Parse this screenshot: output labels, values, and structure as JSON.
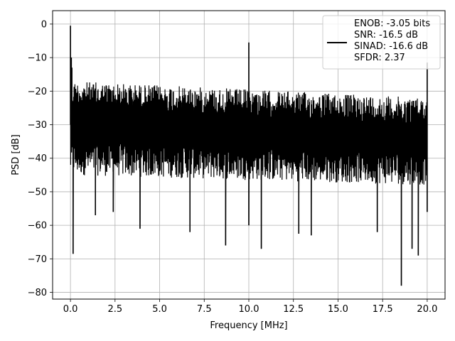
{
  "chart_data": {
    "type": "line",
    "xlabel": "Frequency [MHz]",
    "ylabel": "PSD [dB]",
    "xlim": [
      -1.0,
      21.0
    ],
    "ylim": [
      -82.0,
      4.0
    ],
    "x_ticks": [
      0.0,
      2.5,
      5.0,
      7.5,
      10.0,
      12.5,
      15.0,
      17.5,
      20.0
    ],
    "x_tick_labels": [
      "0.0",
      "2.5",
      "5.0",
      "7.5",
      "10.0",
      "12.5",
      "15.0",
      "17.5",
      "20.0"
    ],
    "y_ticks": [
      0,
      -10,
      -20,
      -30,
      -40,
      -50,
      -60,
      -70,
      -80
    ],
    "y_tick_labels": [
      "0",
      "−10",
      "−20",
      "−30",
      "−40",
      "−50",
      "−60",
      "−70",
      "−80"
    ],
    "grid": true,
    "legend_position": "top-right",
    "legend_lines": [
      "ENOB: -3.05 bits",
      "SNR: -16.5 dB",
      "SINAD: -16.6 dB",
      "SFDR: 2.37"
    ],
    "series": [
      {
        "color": "#000000",
        "x_range": [
          0.0,
          20.0
        ],
        "noise_floor_upper_db": [
          -17,
          -22
        ],
        "noise_floor_lower_db": [
          -45,
          -48
        ],
        "points": [
          {
            "x": 0.0,
            "y": -0.5
          },
          {
            "x": 0.02,
            "y": -27
          },
          {
            "x": 0.05,
            "y": -10
          },
          {
            "x": 0.08,
            "y": -13
          },
          {
            "x": 0.15,
            "y": -68.5
          },
          {
            "x": 0.2,
            "y": -37
          },
          {
            "x": 1.4,
            "y": -57
          },
          {
            "x": 2.4,
            "y": -56
          },
          {
            "x": 3.9,
            "y": -61
          },
          {
            "x": 6.7,
            "y": -62
          },
          {
            "x": 8.7,
            "y": -66
          },
          {
            "x": 10.0,
            "y": -5.5
          },
          {
            "x": 10.0,
            "y": -60
          },
          {
            "x": 10.7,
            "y": -67
          },
          {
            "x": 12.8,
            "y": -62.5
          },
          {
            "x": 13.5,
            "y": -63
          },
          {
            "x": 17.2,
            "y": -62
          },
          {
            "x": 18.55,
            "y": -78
          },
          {
            "x": 19.15,
            "y": -67
          },
          {
            "x": 19.5,
            "y": -69
          },
          {
            "x": 20.0,
            "y": -11.5
          },
          {
            "x": 20.0,
            "y": -56
          }
        ]
      }
    ]
  }
}
